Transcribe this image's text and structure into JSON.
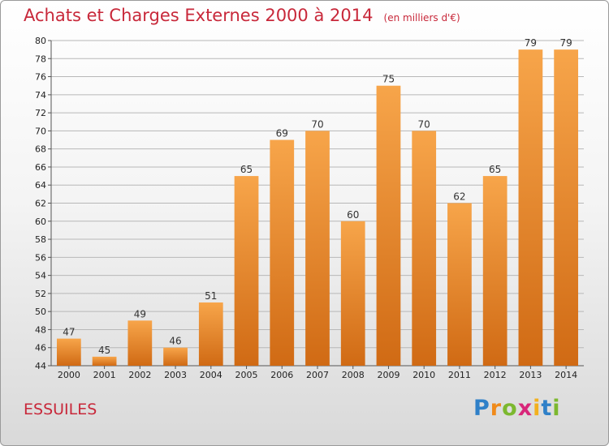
{
  "title": "Achats et Charges Externes 2000 à 2014",
  "subtitle": "(en milliers d'€)",
  "commune": "ESSUILES",
  "logo": {
    "letters": [
      "P",
      "r",
      "o",
      "x",
      "i",
      "t",
      "i"
    ],
    "colors": [
      "#2f80c8",
      "#f08a1a",
      "#7cb82f",
      "#d8267a",
      "#f2b01e",
      "#2f80c8",
      "#7cb82f"
    ]
  },
  "colors": {
    "bar_light": "#f7a54a",
    "bar_dark": "#d06a14",
    "title": "#c8283a"
  },
  "chart_data": {
    "type": "bar",
    "title": "Achats et Charges Externes 2000 à 2014",
    "subtitle": "(en milliers d'€)",
    "categories": [
      "2000",
      "2001",
      "2002",
      "2003",
      "2004",
      "2005",
      "2006",
      "2007",
      "2008",
      "2009",
      "2010",
      "2011",
      "2012",
      "2013",
      "2014"
    ],
    "values": [
      47,
      45,
      49,
      46,
      51,
      65,
      69,
      70,
      60,
      75,
      70,
      62,
      65,
      79,
      79
    ],
    "ylim": [
      44,
      80
    ],
    "yticks": [
      44,
      46,
      48,
      50,
      52,
      54,
      56,
      58,
      60,
      62,
      64,
      66,
      68,
      70,
      72,
      74,
      76,
      78,
      80
    ],
    "grid": true,
    "xlabel": "",
    "ylabel": ""
  }
}
